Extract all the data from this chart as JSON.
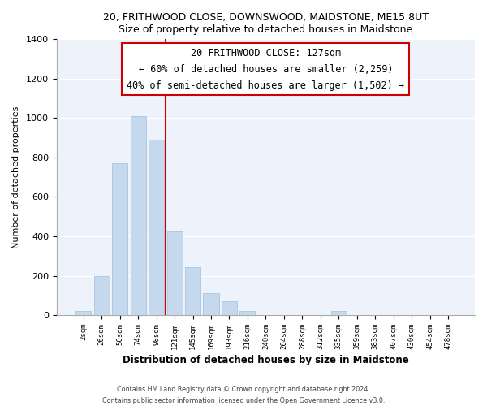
{
  "title_line1": "20, FRITHWOOD CLOSE, DOWNSWOOD, MAIDSTONE, ME15 8UT",
  "title_line2": "Size of property relative to detached houses in Maidstone",
  "xlabel": "Distribution of detached houses by size in Maidstone",
  "ylabel": "Number of detached properties",
  "bar_labels": [
    "2sqm",
    "26sqm",
    "50sqm",
    "74sqm",
    "98sqm",
    "121sqm",
    "145sqm",
    "169sqm",
    "193sqm",
    "216sqm",
    "240sqm",
    "264sqm",
    "288sqm",
    "312sqm",
    "335sqm",
    "359sqm",
    "383sqm",
    "407sqm",
    "430sqm",
    "454sqm",
    "478sqm"
  ],
  "bar_values": [
    20,
    200,
    770,
    1010,
    890,
    425,
    245,
    110,
    70,
    20,
    0,
    0,
    0,
    0,
    20,
    0,
    0,
    0,
    0,
    0,
    0
  ],
  "bar_color": "#c5d9ee",
  "bar_edge_color": "#a0bcd8",
  "vline_x_index": 5,
  "vline_color": "#cc0000",
  "annotation_title": "20 FRITHWOOD CLOSE: 127sqm",
  "annotation_line1": "← 60% of detached houses are smaller (2,259)",
  "annotation_line2": "40% of semi-detached houses are larger (1,502) →",
  "annotation_box_color": "#ffffff",
  "annotation_box_edge": "#cc0000",
  "ylim": [
    0,
    1400
  ],
  "yticks": [
    0,
    200,
    400,
    600,
    800,
    1000,
    1200,
    1400
  ],
  "footer_line1": "Contains HM Land Registry data © Crown copyright and database right 2024.",
  "footer_line2": "Contains public sector information licensed under the Open Government Licence v3.0.",
  "bg_color": "#ffffff",
  "plot_bg_color": "#eef2fb"
}
